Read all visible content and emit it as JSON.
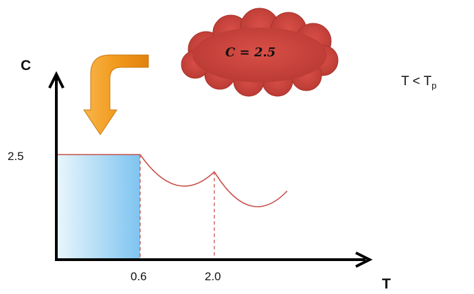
{
  "axes": {
    "y_label": "C",
    "x_label": "T"
  },
  "ticks": {
    "y": [
      "2.5"
    ],
    "x": [
      "0.6",
      "2.0"
    ]
  },
  "callout": {
    "text": "C = 2.5"
  },
  "condition": {
    "main": "T < T",
    "subscript": "p"
  },
  "colors": {
    "axis": "#000000",
    "curve": "#c8504a",
    "fill_light": "#e6f3fc",
    "fill_dark": "#8dcaf2",
    "cloud": "#cf4a42",
    "arrow": "#f5a021"
  }
}
